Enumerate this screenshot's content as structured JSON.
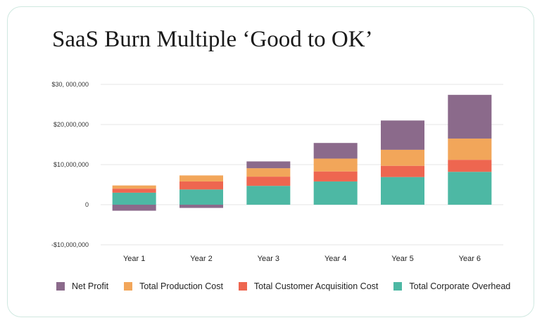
{
  "chart_data": {
    "type": "bar",
    "stacked": true,
    "title": "SaaS Burn Multiple ‘Good to OK’",
    "categories": [
      "Year 1",
      "Year 2",
      "Year 3",
      "Year 4",
      "Year 5",
      "Year 6"
    ],
    "series": [
      {
        "name": "Total Corporate Overhead",
        "color": "#4db8a4",
        "values": [
          3000000,
          3800000,
          4700000,
          5800000,
          6900000,
          8200000
        ]
      },
      {
        "name": "Total Customer Acquisition Cost",
        "color": "#ee6650",
        "values": [
          1000000,
          2000000,
          2300000,
          2500000,
          2800000,
          3000000
        ]
      },
      {
        "name": "Total Production Cost",
        "color": "#f2a65a",
        "values": [
          800000,
          1500000,
          2100000,
          3200000,
          4000000,
          5300000
        ]
      },
      {
        "name": "Net Profit",
        "color": "#8b6a8b",
        "values": [
          -1500000,
          -800000,
          1700000,
          3900000,
          7300000,
          10900000
        ]
      }
    ],
    "legend_order": [
      "Net Profit",
      "Total Production Cost",
      "Total Customer Acquisition Cost",
      "Total Corporate Overhead"
    ],
    "ylim": [
      -10000000,
      30000000
    ],
    "yticks": [
      -10000000,
      0,
      10000000,
      20000000,
      30000000
    ],
    "ytick_labels": [
      "-$10,000,000",
      "0",
      "$10,000,000",
      "$20,000,000",
      "$30, 000,000"
    ],
    "grid": true,
    "legend_position": "bottom",
    "xlabel": "",
    "ylabel": ""
  }
}
